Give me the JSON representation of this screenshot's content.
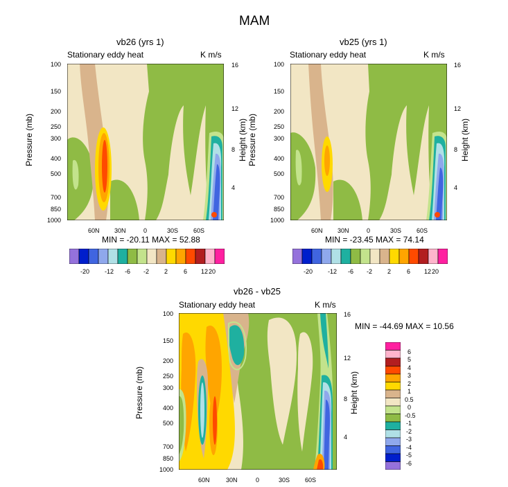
{
  "figure": {
    "title": "MAM"
  },
  "chart_data": [
    {
      "type": "heatmap",
      "title": "vb26 (yrs 1)",
      "left_string": "Stationary eddy heat",
      "right_string": "K m/s",
      "xlabel": "",
      "ylabel": "Pressure (mb)",
      "ylabel_right": "Height (km)",
      "x_ticks": [
        "60N",
        "30N",
        "0",
        "30S",
        "60S"
      ],
      "y_ticks": [
        "100",
        "150",
        "200",
        "250",
        "300",
        "400",
        "500",
        "700",
        "850",
        "1000"
      ],
      "y_right_ticks": [
        "16",
        "12",
        "8",
        "4"
      ],
      "stats": "MIN = -20.11   MAX = 52.88",
      "min": -20.11,
      "max": 52.88,
      "colorbar_levels": [
        "-20",
        "-12",
        "-6",
        "-2",
        "2",
        "6",
        "12",
        "20"
      ]
    },
    {
      "type": "heatmap",
      "title": "vb25 (yrs 1)",
      "left_string": "Stationary eddy heat",
      "right_string": "K m/s",
      "xlabel": "",
      "ylabel": "Pressure (mb)",
      "ylabel_right": "Height (km)",
      "x_ticks": [
        "60N",
        "30N",
        "0",
        "30S",
        "60S"
      ],
      "y_ticks": [
        "100",
        "150",
        "200",
        "250",
        "300",
        "400",
        "500",
        "700",
        "850",
        "1000"
      ],
      "y_right_ticks": [
        "16",
        "12",
        "8",
        "4"
      ],
      "stats": "MIN = -23.45   MAX = 74.14",
      "min": -23.45,
      "max": 74.14,
      "colorbar_levels": [
        "-20",
        "-12",
        "-6",
        "-2",
        "2",
        "6",
        "12",
        "20"
      ]
    },
    {
      "type": "heatmap",
      "title": "vb26 - vb25",
      "left_string": "Stationary eddy heat",
      "right_string": "K m/s",
      "xlabel": "",
      "ylabel": "Pressure (mb)",
      "ylabel_right": "Height (km)",
      "x_ticks": [
        "60N",
        "30N",
        "0",
        "30S",
        "60S"
      ],
      "y_ticks": [
        "100",
        "150",
        "200",
        "250",
        "300",
        "400",
        "500",
        "700",
        "850",
        "1000"
      ],
      "y_right_ticks": [
        "16",
        "12",
        "8",
        "4"
      ],
      "stats": "MIN = -44.69   MAX = 10.56",
      "min": -44.69,
      "max": 10.56,
      "colorbar_levels": [
        "6",
        "5",
        "4",
        "3",
        "2",
        "1",
        "0.5",
        "0",
        "-0.5",
        "-1",
        "-2",
        "-3",
        "-4",
        "-5",
        "-6"
      ]
    }
  ],
  "colors": {
    "bg": "#f2e6c4",
    "green": "#8fbb45",
    "lightgreen": "#c3e38c",
    "tan": "#d9b48c",
    "yellow": "#ffd900",
    "orange": "#ffa500",
    "redorange": "#ff4a00",
    "teal": "#1fb0a0",
    "lightcyan": "#b0e0e6",
    "lightblue": "#8fa8ec",
    "blue": "#4065e0",
    "darkblue": "#001ecc",
    "purple": "#9572dc",
    "pink": "#ffb4cc",
    "magenta": "#ff20a0",
    "darkred": "#b21e20",
    "cbar_top": [
      "#9572dc",
      "#001ecc",
      "#4065e0",
      "#8fa8ec",
      "#b0e0e6",
      "#1fb0a0",
      "#8fbb45",
      "#c3e38c",
      "#f2e6c4",
      "#d9b48c",
      "#ffd900",
      "#ffa500",
      "#ff4a00",
      "#b21e20",
      "#ffb4cc",
      "#ff20a0"
    ],
    "cbar_diff": [
      "#ff20a0",
      "#ffb4cc",
      "#b21e20",
      "#ff4a00",
      "#ffa500",
      "#ffd900",
      "#d9b48c",
      "#f2e6c4",
      "#c3e38c",
      "#8fbb45",
      "#1fb0a0",
      "#b0e0e6",
      "#8fa8ec",
      "#4065e0",
      "#001ecc",
      "#9572dc"
    ]
  }
}
